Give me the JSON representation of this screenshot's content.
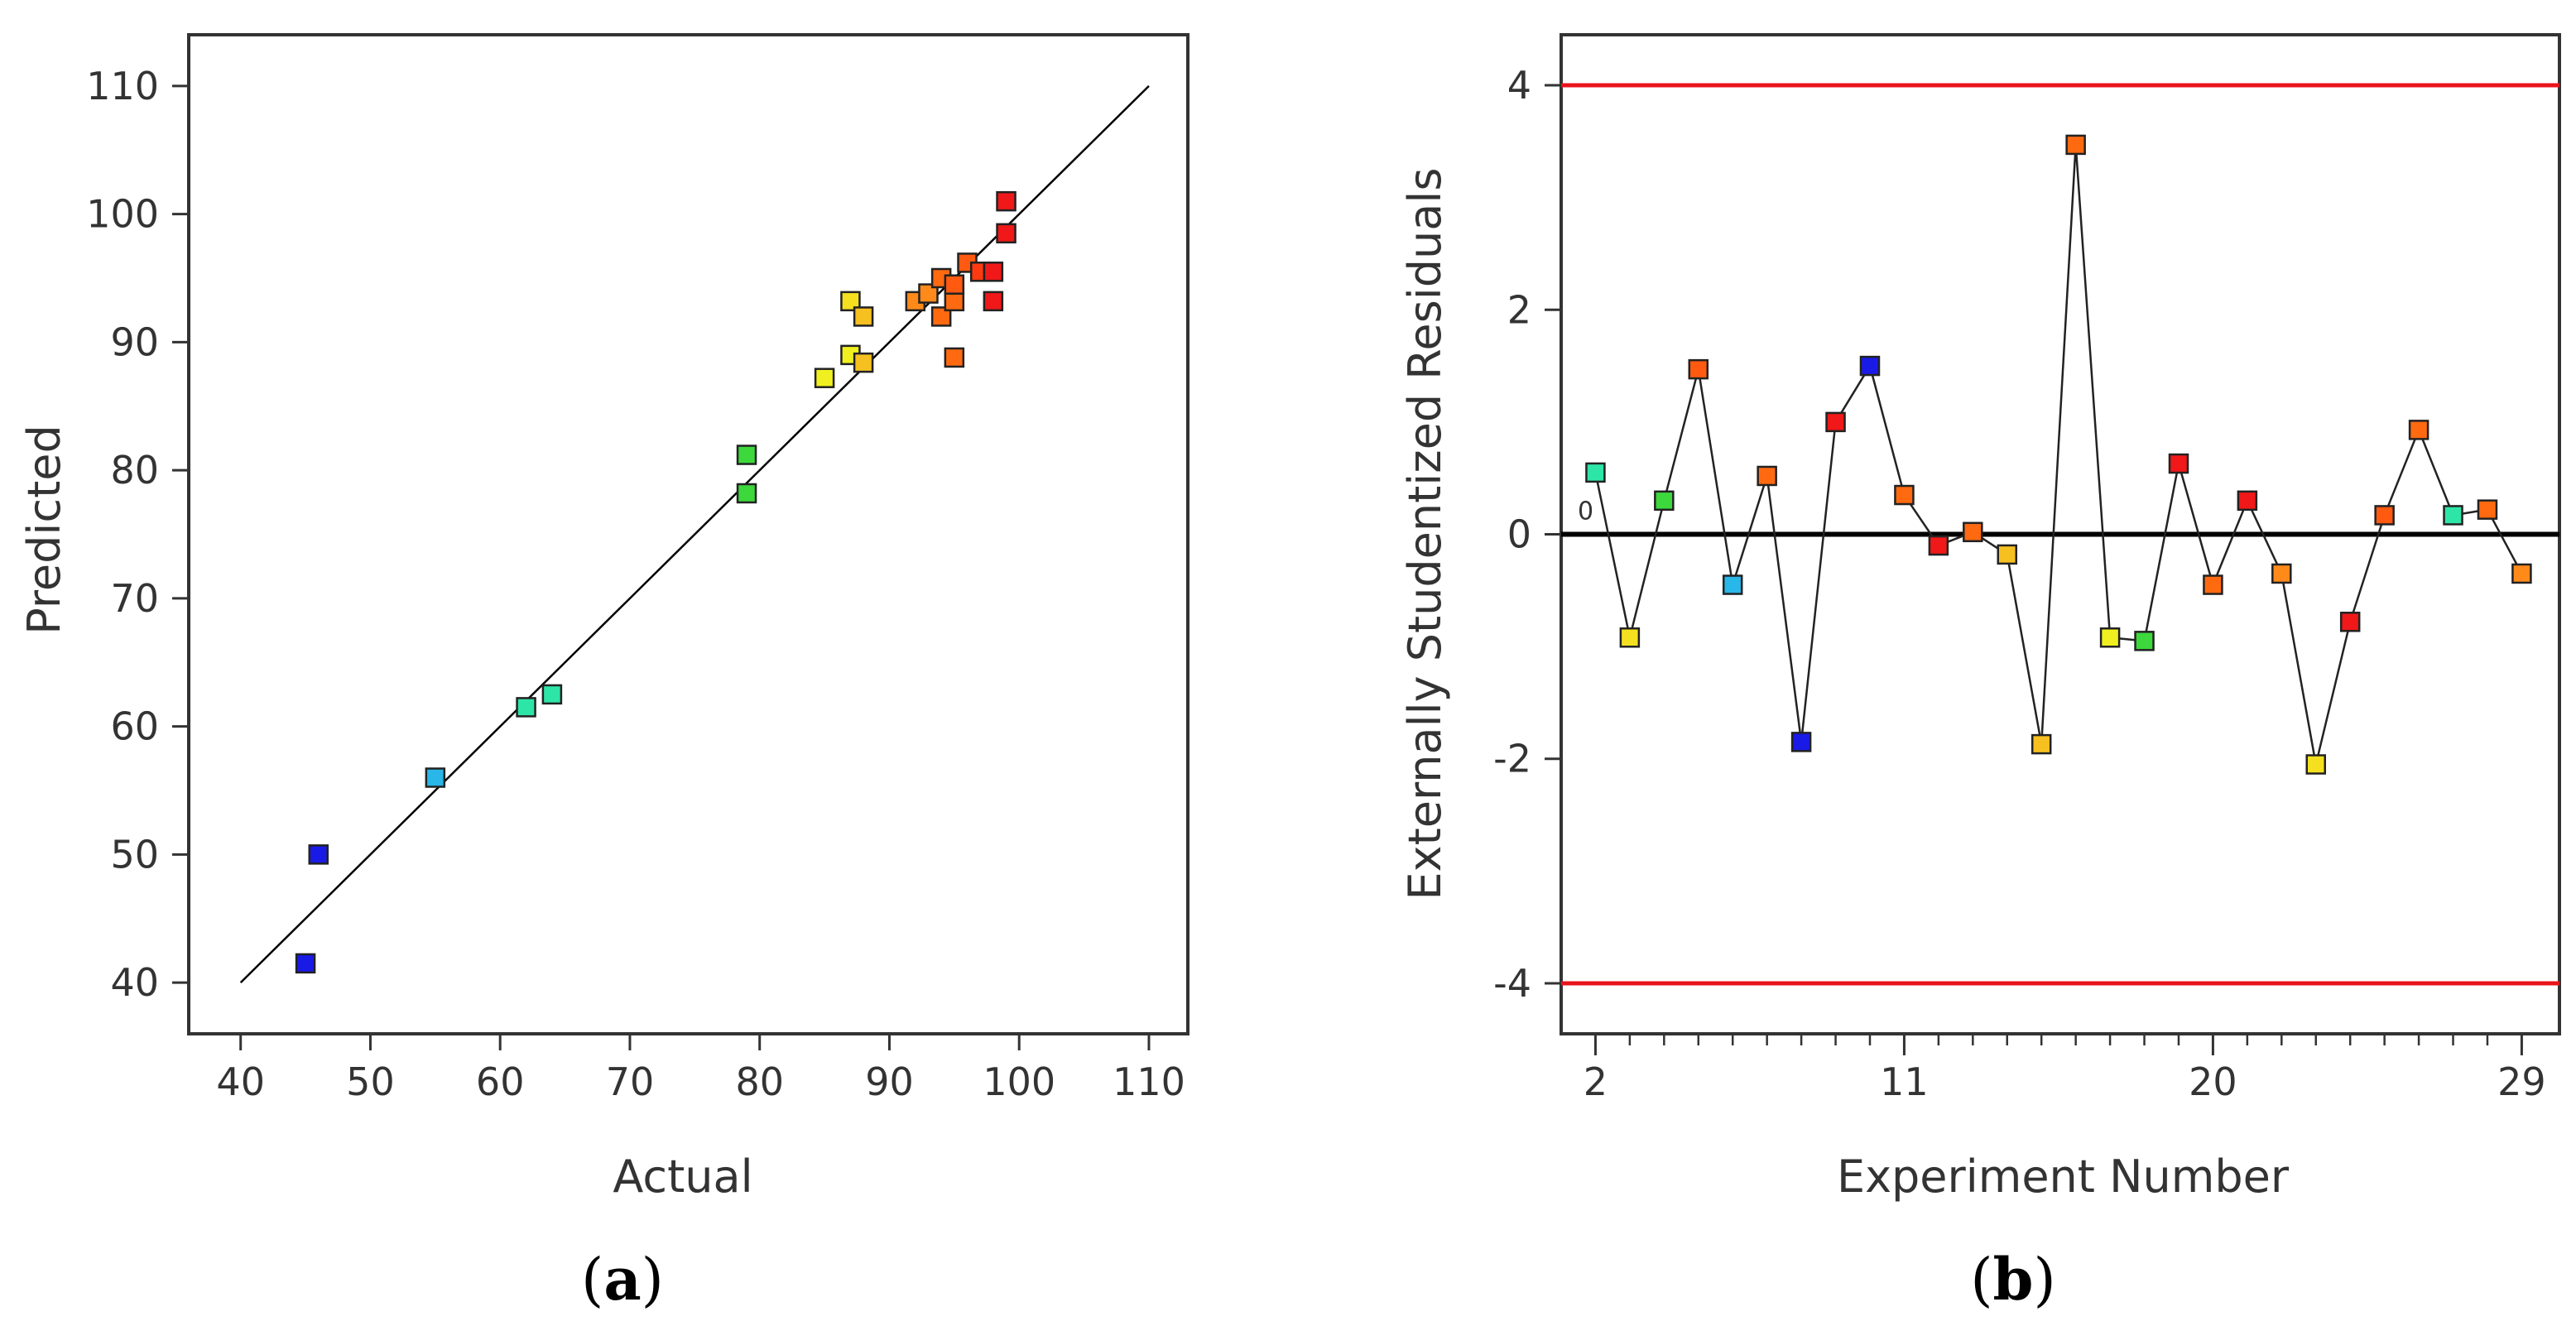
{
  "colors": {
    "axis": "#333333",
    "fit_line": "#000000",
    "zero_line": "#000000",
    "limit_line": "#e8141b",
    "marker_edge": "#222222"
  },
  "chart_data": [
    {
      "id": "a",
      "type": "scatter",
      "panel_label": "(a)",
      "panel_letter": "a",
      "title": "",
      "xlabel": "Actual",
      "ylabel": "Predicted",
      "xlim": [
        36,
        113
      ],
      "ylim": [
        36,
        114
      ],
      "xticks": [
        40,
        50,
        60,
        70,
        80,
        90,
        100,
        110
      ],
      "yticks": [
        40,
        50,
        60,
        70,
        80,
        90,
        100,
        110
      ],
      "reference_line": {
        "x": [
          40,
          110
        ],
        "y": [
          40,
          110
        ]
      },
      "points": [
        {
          "x": 45,
          "y": 41.5,
          "color": "#1a1ae6"
        },
        {
          "x": 46,
          "y": 50,
          "color": "#1a1ae6"
        },
        {
          "x": 55,
          "y": 56,
          "color": "#29b6e8"
        },
        {
          "x": 62,
          "y": 61.5,
          "color": "#2ee5a8"
        },
        {
          "x": 64,
          "y": 62.5,
          "color": "#2ee5a8"
        },
        {
          "x": 79,
          "y": 78.2,
          "color": "#3cd83c"
        },
        {
          "x": 79,
          "y": 81.2,
          "color": "#3cd83c"
        },
        {
          "x": 85,
          "y": 87.2,
          "color": "#f0f020"
        },
        {
          "x": 87,
          "y": 89,
          "color": "#f0f020"
        },
        {
          "x": 87,
          "y": 93.2,
          "color": "#f5e020"
        },
        {
          "x": 88,
          "y": 88.4,
          "color": "#f5c020"
        },
        {
          "x": 88,
          "y": 92,
          "color": "#f5c020"
        },
        {
          "x": 92,
          "y": 93.2,
          "color": "#ff8a1a"
        },
        {
          "x": 93,
          "y": 93.8,
          "color": "#ff8a1a"
        },
        {
          "x": 94,
          "y": 92,
          "color": "#ff6a10"
        },
        {
          "x": 94,
          "y": 95,
          "color": "#ff6a10"
        },
        {
          "x": 95,
          "y": 88.8,
          "color": "#ff6a10"
        },
        {
          "x": 95,
          "y": 93.2,
          "color": "#ff6a10"
        },
        {
          "x": 95,
          "y": 94.5,
          "color": "#ff5a10"
        },
        {
          "x": 96,
          "y": 96.2,
          "color": "#ff5a10"
        },
        {
          "x": 97,
          "y": 95.5,
          "color": "#ff3a10"
        },
        {
          "x": 98,
          "y": 95.5,
          "color": "#f01818"
        },
        {
          "x": 98,
          "y": 93.2,
          "color": "#f01818"
        },
        {
          "x": 99,
          "y": 98.5,
          "color": "#f01818"
        },
        {
          "x": 99,
          "y": 101,
          "color": "#f01818"
        }
      ]
    },
    {
      "id": "b",
      "type": "line",
      "panel_label": "(b)",
      "panel_letter": "b",
      "title": "",
      "xlabel": "Experiment Number",
      "ylabel": "Externally Studentized Residuals",
      "xlim": [
        1,
        30.1
      ],
      "ylim": [
        -4.45,
        4.45
      ],
      "xticks": [
        2,
        11,
        20,
        29
      ],
      "xminor_ticks": [
        3,
        4,
        5,
        6,
        7,
        8,
        9,
        10,
        12,
        13,
        14,
        15,
        16,
        17,
        18,
        19,
        21,
        22,
        23,
        24,
        25,
        26,
        27,
        28
      ],
      "yticks": [
        -4,
        -2,
        0,
        2,
        4
      ],
      "yticklabels": [
        "-4",
        "-2",
        "0",
        "2",
        "4"
      ],
      "zero_note": "0",
      "limits": [
        4,
        -4
      ],
      "zero_line": 0,
      "points": [
        {
          "x": 2,
          "y": 0.55,
          "color": "#2ee5a8"
        },
        {
          "x": 3,
          "y": -0.92,
          "color": "#f5e020"
        },
        {
          "x": 4,
          "y": 0.3,
          "color": "#3cd83c"
        },
        {
          "x": 5,
          "y": 1.47,
          "color": "#ff5a10"
        },
        {
          "x": 6,
          "y": -0.45,
          "color": "#29b6e8"
        },
        {
          "x": 7,
          "y": 0.52,
          "color": "#ff6a10"
        },
        {
          "x": 8,
          "y": -1.85,
          "color": "#1a1ae6"
        },
        {
          "x": 9,
          "y": 1.0,
          "color": "#f01818"
        },
        {
          "x": 10,
          "y": 1.5,
          "color": "#1a1ae6"
        },
        {
          "x": 11,
          "y": 0.35,
          "color": "#ff6a10"
        },
        {
          "x": 12,
          "y": -0.1,
          "color": "#f01818"
        },
        {
          "x": 13,
          "y": 0.02,
          "color": "#ff6a10"
        },
        {
          "x": 14,
          "y": -0.18,
          "color": "#f5c020"
        },
        {
          "x": 15,
          "y": -1.87,
          "color": "#f5c020"
        },
        {
          "x": 16,
          "y": 3.47,
          "color": "#ff6a10"
        },
        {
          "x": 17,
          "y": -0.92,
          "color": "#f0f020"
        },
        {
          "x": 18,
          "y": -0.95,
          "color": "#3cd83c"
        },
        {
          "x": 19,
          "y": 0.63,
          "color": "#f01818"
        },
        {
          "x": 20,
          "y": -0.45,
          "color": "#ff6a10"
        },
        {
          "x": 21,
          "y": 0.3,
          "color": "#f01818"
        },
        {
          "x": 22,
          "y": -0.35,
          "color": "#ff8a1a"
        },
        {
          "x": 23,
          "y": -2.05,
          "color": "#f5e020"
        },
        {
          "x": 24,
          "y": -0.78,
          "color": "#f01818"
        },
        {
          "x": 25,
          "y": 0.17,
          "color": "#ff5a10"
        },
        {
          "x": 26,
          "y": 0.93,
          "color": "#ff6a10"
        },
        {
          "x": 27,
          "y": 0.17,
          "color": "#2ee5a8"
        },
        {
          "x": 28,
          "y": 0.22,
          "color": "#ff6a10"
        },
        {
          "x": 29,
          "y": -0.35,
          "color": "#ff8a1a"
        }
      ]
    }
  ]
}
